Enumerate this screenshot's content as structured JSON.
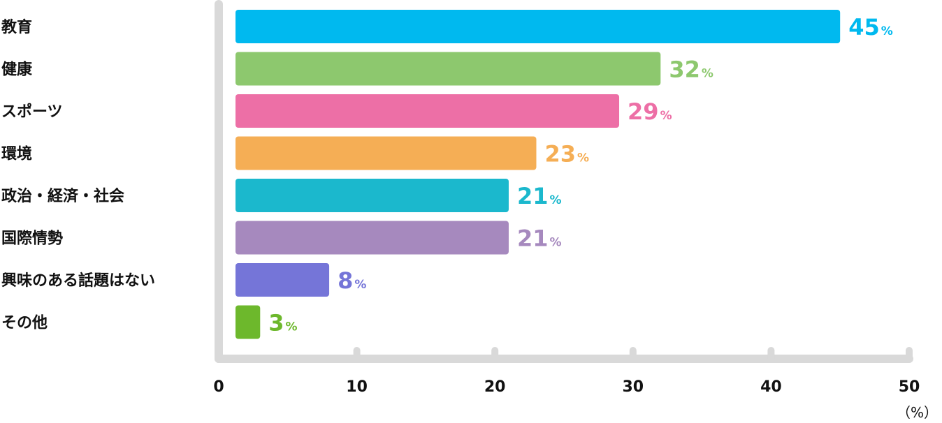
{
  "chart_data": {
    "type": "bar",
    "orientation": "horizontal",
    "categories": [
      "教育",
      "健康",
      "スポーツ",
      "環境",
      "政治・経済・社会",
      "国際情勢",
      "興味のある話題はない",
      "その他"
    ],
    "values": [
      45,
      32,
      29,
      23,
      21,
      21,
      8,
      3
    ],
    "colors": [
      "#00b9ef",
      "#8dc86e",
      "#ed6fa6",
      "#f5ae55",
      "#1bb8cd",
      "#a689be",
      "#7575d8",
      "#6db82c"
    ],
    "value_suffix": "%",
    "xlim": [
      0,
      50
    ],
    "xticks": [
      0,
      10,
      20,
      30,
      40,
      50
    ],
    "unit_label": "（%）",
    "axis_color": "#d9d9d9",
    "grid": false,
    "legend": "none"
  }
}
